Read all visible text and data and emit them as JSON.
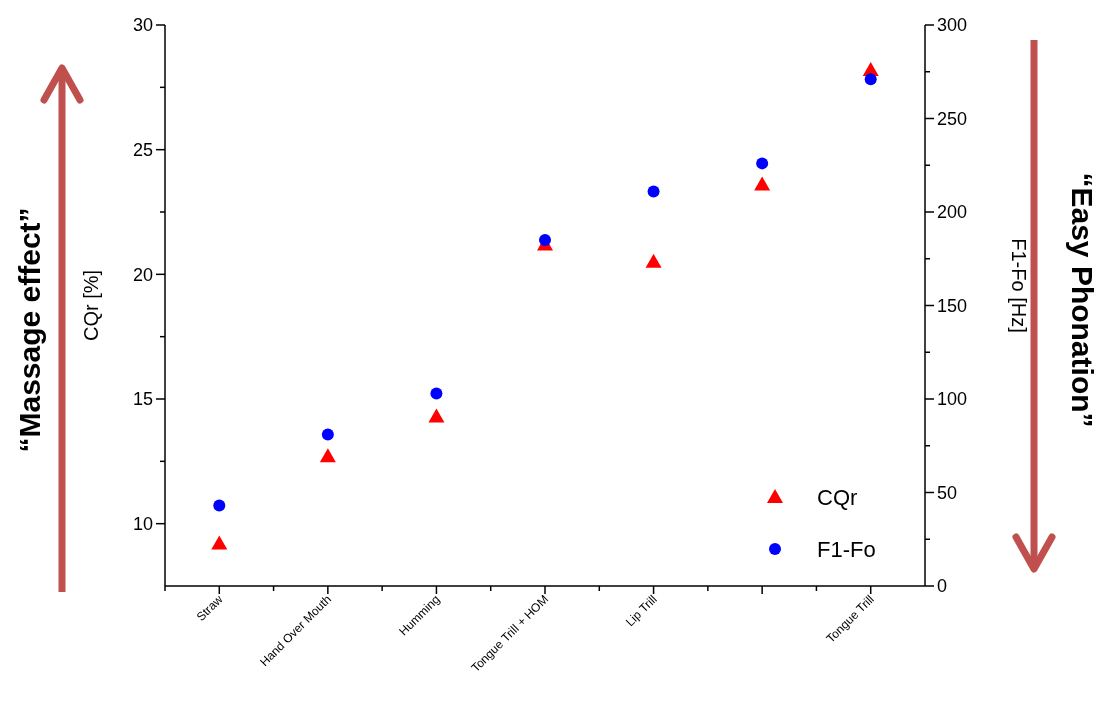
{
  "chart_data": {
    "type": "scatter",
    "ylabel": "CQr [%]",
    "y2label": "F1-Fo [Hz]",
    "categories": [
      "Straw",
      "Hand Over Mouth",
      "Humming",
      "Tongue Trill + HOM",
      "Lip Trill",
      null,
      "Tongue Trill"
    ],
    "series": [
      {
        "name": "CQr",
        "color": "#ff0000",
        "marker": "triangle",
        "values": [
          9.2,
          12.7,
          14.3,
          21.2,
          20.5,
          23.6,
          28.2
        ]
      },
      {
        "name": "F1-Fo",
        "color": "#0000ff",
        "marker": "circle",
        "axis": "y2",
        "values": [
          43,
          81,
          103,
          185,
          211,
          226,
          271
        ]
      }
    ],
    "ylim": [
      7.5,
      30
    ],
    "yticks": [
      10,
      {
        "value": 12.5,
        "label": null
      },
      15,
      {
        "value": 17.5,
        "label": null
      },
      20,
      {
        "value": 22.5,
        "label": null
      },
      25,
      {
        "value": 27.5,
        "label": null
      },
      30
    ],
    "y2lim": [
      0,
      300
    ],
    "y2ticks": [
      0,
      {
        "value": 25,
        "label": null
      },
      50,
      {
        "value": 75,
        "label": null
      },
      100,
      {
        "value": 125,
        "label": null
      },
      150,
      {
        "value": 175,
        "label": null
      },
      200,
      {
        "value": 225,
        "label": null
      },
      250,
      {
        "value": 275,
        "label": null
      },
      300
    ],
    "legend": "bottom right",
    "annotations": [
      "“Massage effect”",
      "“Easy Phonation”"
    ]
  }
}
